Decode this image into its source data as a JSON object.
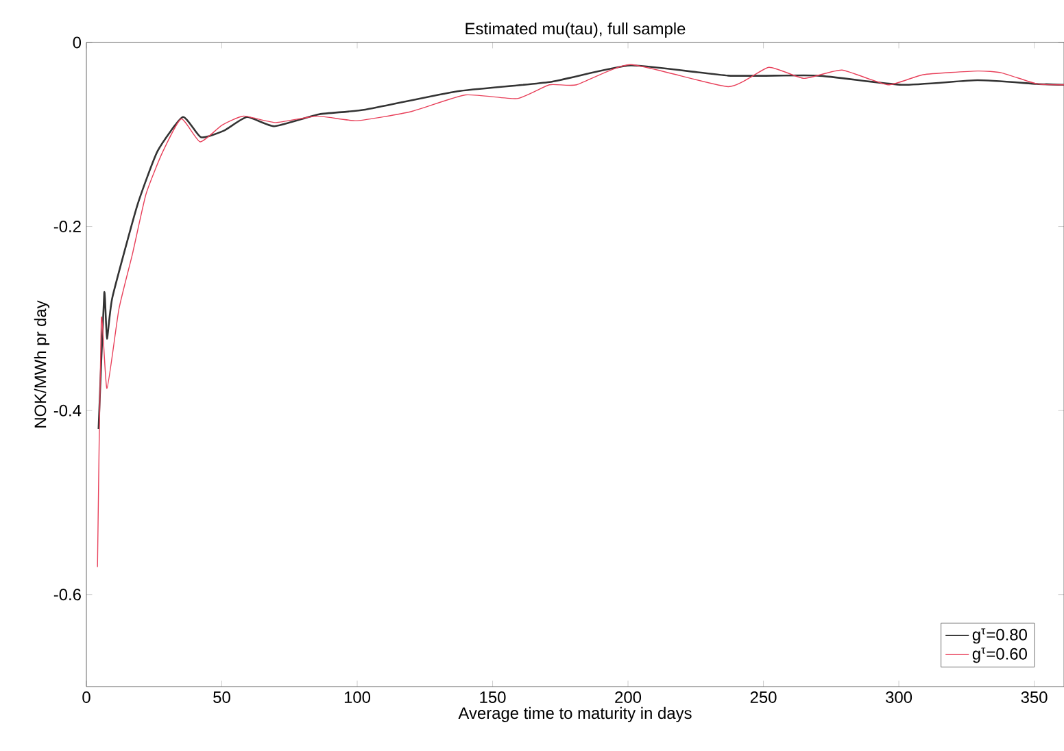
{
  "chart_data": {
    "type": "line",
    "title": "Estimated mu(tau), full sample",
    "xlabel": "Average time to maturity in days",
    "ylabel": "NOK/MWh pr day",
    "xlim": [
      0,
      361
    ],
    "ylim": [
      -0.7,
      0
    ],
    "xticks": [
      0,
      50,
      100,
      150,
      200,
      250,
      300,
      350
    ],
    "yticks": [
      -0.6,
      -0.4,
      -0.2,
      0
    ],
    "grid": false,
    "legend": "bottom right",
    "line_style": "solid",
    "marker": "none",
    "series": [
      {
        "name": "g$^{τ}$=0.80",
        "color": "#333333",
        "x": [
          4.5,
          6.6,
          7.6,
          9.6,
          18.7,
          26.3,
          35.6,
          42.3,
          50.7,
          59.3,
          69.4,
          86,
          103,
          137,
          171,
          201,
          237,
          270,
          301,
          329,
          351,
          361
        ],
        "values": [
          -0.42,
          -0.272,
          -0.322,
          -0.277,
          -0.178,
          -0.118,
          -0.081,
          -0.103,
          -0.096,
          -0.081,
          -0.091,
          -0.078,
          -0.073,
          -0.053,
          -0.043,
          -0.025,
          -0.036,
          -0.036,
          -0.046,
          -0.041,
          -0.045,
          -0.046
        ]
      },
      {
        "name": "g$^{τ}$=0.60",
        "color": "#e8405a",
        "x": [
          4.1,
          5.5,
          7.6,
          12,
          17,
          22,
          28,
          35,
          42,
          50,
          58,
          70,
          85,
          100,
          120,
          140,
          159,
          171,
          181,
          201,
          237,
          252,
          265,
          279,
          296,
          309,
          329,
          338,
          351,
          361
        ],
        "values": [
          -0.57,
          -0.3,
          -0.376,
          -0.29,
          -0.23,
          -0.165,
          -0.12,
          -0.083,
          -0.108,
          -0.09,
          -0.08,
          -0.087,
          -0.08,
          -0.085,
          -0.075,
          -0.057,
          -0.061,
          -0.046,
          -0.046,
          -0.024,
          -0.048,
          -0.027,
          -0.039,
          -0.03,
          -0.046,
          -0.035,
          -0.031,
          -0.033,
          -0.045,
          -0.046
        ]
      }
    ]
  }
}
